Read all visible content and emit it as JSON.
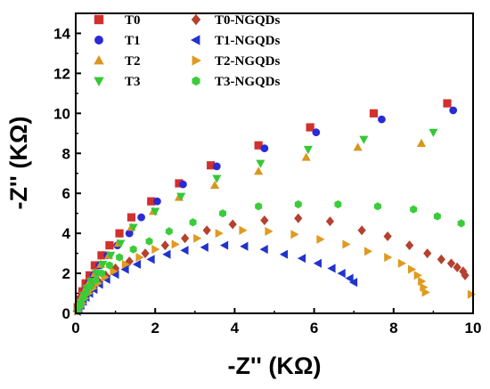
{
  "chart_data": {
    "type": "scatter",
    "xlabel": "-Z'' (KΩ)",
    "ylabel": "-Z'' (KΩ)",
    "xlim": [
      0,
      10
    ],
    "ylim": [
      0,
      15
    ],
    "xticks": [
      "0",
      "2",
      "4",
      "6",
      "8",
      "10"
    ],
    "yticks": [
      "0",
      "2",
      "4",
      "6",
      "8",
      "10",
      "12",
      "14"
    ],
    "grid": false,
    "legend_position": "top-left",
    "series": [
      {
        "name": "T0",
        "marker": "square",
        "color": "#d0312d",
        "x": [
          0.05,
          0.1,
          0.17,
          0.25,
          0.35,
          0.48,
          0.65,
          0.85,
          1.1,
          1.4,
          1.9,
          2.6,
          3.4,
          4.6,
          5.9,
          7.5,
          9.35
        ],
        "y": [
          0.3,
          0.7,
          1.1,
          1.5,
          1.9,
          2.4,
          2.9,
          3.4,
          4.0,
          4.8,
          5.6,
          6.5,
          7.4,
          8.4,
          9.3,
          10.0,
          10.5
        ]
      },
      {
        "name": "T1",
        "marker": "circle",
        "color": "#2a2ad6",
        "x": [
          0.08,
          0.15,
          0.23,
          0.33,
          0.45,
          0.6,
          0.8,
          1.05,
          1.35,
          1.65,
          2.05,
          2.7,
          3.55,
          4.75,
          6.05,
          7.7,
          9.5
        ],
        "y": [
          0.3,
          0.7,
          1.1,
          1.5,
          1.9,
          2.4,
          2.9,
          3.4,
          4.0,
          4.8,
          5.6,
          6.45,
          7.35,
          8.25,
          9.05,
          9.7,
          10.15
        ]
      },
      {
        "name": "T2",
        "marker": "triangle-up",
        "color": "#d9961f",
        "x": [
          0.05,
          0.1,
          0.17,
          0.25,
          0.35,
          0.48,
          0.63,
          0.83,
          1.07,
          1.4,
          1.95,
          2.6,
          3.5,
          4.6,
          5.8,
          7.1,
          8.7
        ],
        "y": [
          0.25,
          0.55,
          0.9,
          1.25,
          1.6,
          2.0,
          2.45,
          2.9,
          3.5,
          4.3,
          5.1,
          5.8,
          6.4,
          7.1,
          7.8,
          8.3,
          8.5
        ]
      },
      {
        "name": "T3",
        "marker": "triangle-down",
        "color": "#36c736",
        "x": [
          0.07,
          0.12,
          0.2,
          0.28,
          0.38,
          0.52,
          0.68,
          0.88,
          1.13,
          1.45,
          2.0,
          2.65,
          3.55,
          4.65,
          5.85,
          7.25,
          9.0
        ],
        "y": [
          0.25,
          0.55,
          0.9,
          1.25,
          1.6,
          2.0,
          2.45,
          2.9,
          3.5,
          4.3,
          5.1,
          5.85,
          6.75,
          7.5,
          8.2,
          8.7,
          9.05
        ]
      },
      {
        "name": "T0-NGQDs",
        "marker": "diamond",
        "color": "#b5412f",
        "x": [
          0.05,
          0.1,
          0.16,
          0.23,
          0.32,
          0.43,
          0.57,
          0.75,
          1.0,
          1.35,
          1.75,
          2.25,
          2.75,
          3.3,
          3.95,
          4.75,
          5.6,
          6.4,
          7.2,
          7.85,
          8.4,
          8.85,
          9.2,
          9.45,
          9.6,
          9.75,
          9.8
        ],
        "y": [
          0.15,
          0.35,
          0.55,
          0.8,
          1.05,
          1.3,
          1.6,
          1.9,
          2.25,
          2.6,
          3.0,
          3.4,
          3.75,
          4.15,
          4.45,
          4.65,
          4.75,
          4.6,
          4.15,
          3.85,
          3.4,
          3.0,
          2.7,
          2.5,
          2.3,
          2.1,
          1.9
        ]
      },
      {
        "name": "T1-NGQDs",
        "marker": "triangle-left",
        "color": "#2233cc",
        "x": [
          0.04,
          0.08,
          0.13,
          0.19,
          0.26,
          0.35,
          0.46,
          0.6,
          0.78,
          1.0,
          1.25,
          1.55,
          1.9,
          2.3,
          2.75,
          3.25,
          3.75,
          4.25,
          4.75,
          5.25,
          5.7,
          6.1,
          6.45,
          6.7,
          6.9,
          7.0
        ],
        "y": [
          0.1,
          0.25,
          0.4,
          0.6,
          0.8,
          1.0,
          1.2,
          1.45,
          1.7,
          1.95,
          2.2,
          2.45,
          2.7,
          2.95,
          3.15,
          3.3,
          3.4,
          3.35,
          3.2,
          2.95,
          2.75,
          2.5,
          2.25,
          2.0,
          1.75,
          1.55
        ]
      },
      {
        "name": "T2-NGQDs",
        "marker": "triangle-right",
        "color": "#e09a1e",
        "x": [
          0.05,
          0.1,
          0.16,
          0.23,
          0.32,
          0.43,
          0.56,
          0.73,
          0.95,
          1.25,
          1.6,
          2.0,
          2.5,
          3.05,
          3.6,
          4.2,
          4.85,
          5.5,
          6.15,
          6.8,
          7.35,
          7.85,
          8.2,
          8.45,
          8.6,
          8.7,
          8.75,
          8.8,
          9.95
        ],
        "y": [
          0.1,
          0.3,
          0.5,
          0.75,
          1.0,
          1.25,
          1.5,
          1.8,
          2.1,
          2.45,
          2.8,
          3.2,
          3.45,
          3.75,
          4.0,
          4.15,
          4.1,
          3.95,
          3.7,
          3.45,
          3.1,
          2.8,
          2.5,
          2.2,
          1.9,
          1.6,
          1.3,
          1.05,
          0.95
        ]
      },
      {
        "name": "T3-NGQDs",
        "marker": "hexagon",
        "color": "#3acc3a",
        "x": [
          0.06,
          0.12,
          0.19,
          0.27,
          0.37,
          0.5,
          0.65,
          0.85,
          1.1,
          1.45,
          1.85,
          2.35,
          2.95,
          3.7,
          4.6,
          5.6,
          6.6,
          7.6,
          8.5,
          9.1,
          9.7
        ],
        "y": [
          0.2,
          0.45,
          0.75,
          1.05,
          1.35,
          1.65,
          2.0,
          2.4,
          2.8,
          3.2,
          3.6,
          4.1,
          4.55,
          5.0,
          5.35,
          5.45,
          5.45,
          5.35,
          5.2,
          4.85,
          4.5
        ]
      }
    ]
  }
}
